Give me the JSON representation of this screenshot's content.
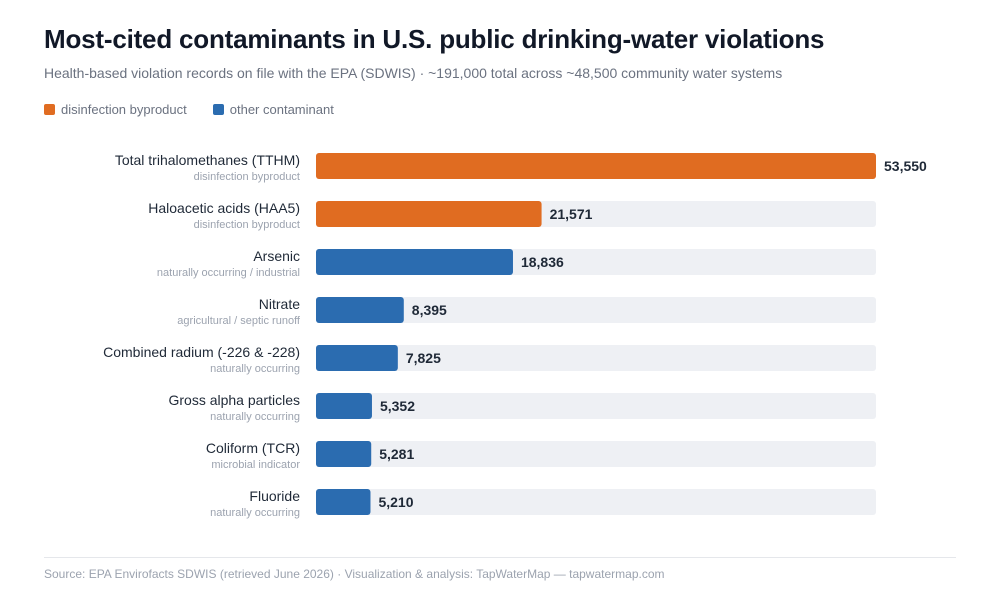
{
  "title": "Most-cited contaminants in U.S. public drinking-water violations",
  "subtitle": "Health-based violation records on file with the EPA (SDWIS) · ~191,000 total across ~48,500 community water systems",
  "legend": [
    {
      "label": "disinfection byproduct",
      "color": "#e06c21"
    },
    {
      "label": "other contaminant",
      "color": "#2b6cb0"
    }
  ],
  "colors": {
    "disinfection byproduct": "#e06c21",
    "other contaminant": "#2b6cb0",
    "track": "#eef0f4"
  },
  "chart_data": {
    "type": "bar",
    "orientation": "horizontal",
    "xlim": [
      0,
      53550
    ],
    "grid": false,
    "legend_position": "top-left",
    "categories": [
      "Total trihalomethanes (TTHM)",
      "Haloacetic acids (HAA5)",
      "Arsenic",
      "Nitrate",
      "Combined radium (-226 & -228)",
      "Gross alpha particles",
      "Coliform (TCR)",
      "Fluoride"
    ],
    "sublabels": [
      "disinfection byproduct",
      "disinfection byproduct",
      "naturally occurring / industrial",
      "agricultural / septic runoff",
      "naturally occurring",
      "naturally occurring",
      "microbial indicator",
      "naturally occurring"
    ],
    "groups": [
      "disinfection byproduct",
      "disinfection byproduct",
      "other contaminant",
      "other contaminant",
      "other contaminant",
      "other contaminant",
      "other contaminant",
      "other contaminant"
    ],
    "values": [
      53550,
      21571,
      18836,
      8395,
      7825,
      5352,
      5281,
      5210
    ],
    "value_labels": [
      "53,550",
      "21,571",
      "18,836",
      "8,395",
      "7,825",
      "5,352",
      "5,281",
      "5,210"
    ]
  },
  "source": "Source: EPA Envirofacts SDWIS (retrieved June 2026) · Visualization & analysis: TapWaterMap — tapwatermap.com"
}
